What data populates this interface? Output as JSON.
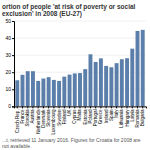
{
  "chart_data": {
    "type": "bar",
    "title": "ortion of people 'at risk of poverty or social exclusion' in 2008 (EU-27)",
    "categories": [
      "Czech Rep.",
      "France",
      "Slovakia",
      "Austria",
      "Netherlands",
      "Denmark",
      "Slovenia",
      "Luxembourg",
      "Sweden",
      "Finland",
      "UK",
      "Cyprus",
      "Malta",
      "Estonia",
      "Poland",
      "Portugal",
      "Greece",
      "Ireland",
      "Spain",
      "Italy",
      "Lithuania",
      "Hungary",
      "Latvia",
      "Romania",
      "Bulgaria"
    ],
    "values": [
      15.3,
      18.5,
      20.6,
      20.6,
      14.9,
      16.3,
      17.1,
      15.5,
      14.9,
      17.4,
      18.6,
      19.3,
      19.5,
      21.8,
      30.5,
      26.0,
      28.1,
      23.7,
      22.9,
      25.3,
      27.6,
      28.2,
      33.8,
      44.2,
      44.8
    ],
    "color": "#5b7faa",
    "ylim": [
      0,
      50
    ],
    "yticks": [
      0,
      10,
      20,
      30,
      40,
      50
    ],
    "grid": true,
    "annotations": [
      "...t, retrieved 11 January 2016. Figures for Croatia for 2008 are not available."
    ]
  }
}
